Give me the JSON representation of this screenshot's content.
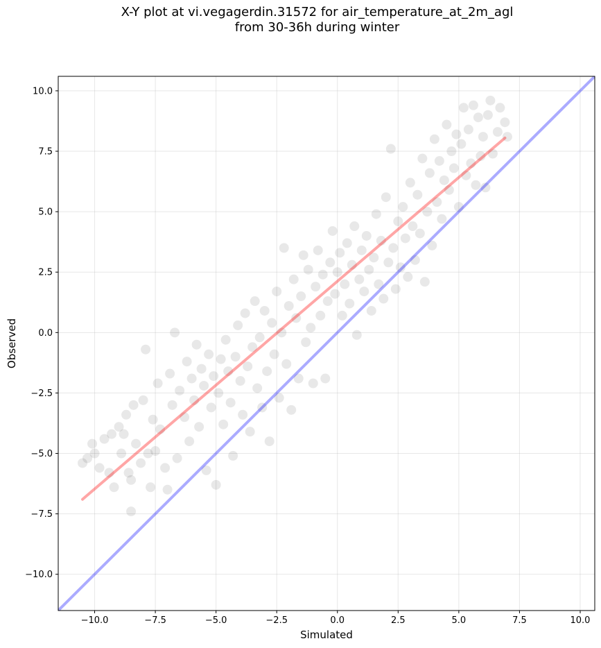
{
  "chart_data": {
    "type": "scatter",
    "title_line1": "X-Y plot at vi.vegagerdin.31572 for air_temperature_at_2m_agl",
    "title_line2": "from 30-36h during winter",
    "xlabel": "Simulated",
    "ylabel": "Observed",
    "xlim": [
      -11.5,
      10.6
    ],
    "ylim": [
      -11.5,
      10.6
    ],
    "x_ticks": [
      -10.0,
      -7.5,
      -5.0,
      -2.5,
      0.0,
      2.5,
      5.0,
      7.5,
      10.0
    ],
    "y_ticks": [
      -10.0,
      -7.5,
      -5.0,
      -2.5,
      0.0,
      2.5,
      5.0,
      7.5,
      10.0
    ],
    "x_tick_labels": [
      "−10.0",
      "−7.5",
      "−5.0",
      "−2.5",
      "0.0",
      "2.5",
      "5.0",
      "7.5",
      "10.0"
    ],
    "y_tick_labels": [
      "−10.0",
      "−7.5",
      "−5.0",
      "−2.5",
      "0.0",
      "2.5",
      "5.0",
      "7.5",
      "10.0"
    ],
    "grid": true,
    "point_color": "#000000",
    "point_opacity": 0.09,
    "series": [
      {
        "type": "scatter",
        "points": [
          [
            -10.5,
            -5.4
          ],
          [
            -10.3,
            -5.2
          ],
          [
            -10.1,
            -4.6
          ],
          [
            -10.0,
            -5.0
          ],
          [
            -9.8,
            -5.6
          ],
          [
            -9.6,
            -4.4
          ],
          [
            -9.4,
            -5.8
          ],
          [
            -9.3,
            -4.2
          ],
          [
            -9.2,
            -6.4
          ],
          [
            -9.0,
            -3.9
          ],
          [
            -8.9,
            -5.0
          ],
          [
            -8.8,
            -4.2
          ],
          [
            -8.7,
            -3.4
          ],
          [
            -8.6,
            -5.8
          ],
          [
            -8.5,
            -7.4
          ],
          [
            -8.5,
            -6.1
          ],
          [
            -8.4,
            -3.0
          ],
          [
            -8.3,
            -4.6
          ],
          [
            -8.1,
            -5.4
          ],
          [
            -8.0,
            -2.8
          ],
          [
            -7.9,
            -0.7
          ],
          [
            -7.8,
            -5.0
          ],
          [
            -7.7,
            -6.4
          ],
          [
            -7.6,
            -3.6
          ],
          [
            -7.5,
            -4.9
          ],
          [
            -7.4,
            -2.1
          ],
          [
            -7.3,
            -4.0
          ],
          [
            -7.1,
            -5.6
          ],
          [
            -7.0,
            -6.5
          ],
          [
            -6.9,
            -1.7
          ],
          [
            -6.8,
            -3.0
          ],
          [
            -6.7,
            0.0
          ],
          [
            -6.6,
            -5.2
          ],
          [
            -6.5,
            -2.4
          ],
          [
            -6.3,
            -3.5
          ],
          [
            -6.2,
            -1.2
          ],
          [
            -6.1,
            -4.5
          ],
          [
            -6.0,
            -1.9
          ],
          [
            -5.9,
            -2.8
          ],
          [
            -5.8,
            -0.5
          ],
          [
            -5.7,
            -3.9
          ],
          [
            -5.6,
            -1.5
          ],
          [
            -5.5,
            -2.2
          ],
          [
            -5.4,
            -5.7
          ],
          [
            -5.3,
            -0.9
          ],
          [
            -5.2,
            -3.1
          ],
          [
            -5.1,
            -1.8
          ],
          [
            -5.0,
            -6.3
          ],
          [
            -4.9,
            -2.5
          ],
          [
            -4.8,
            -1.1
          ],
          [
            -4.7,
            -3.8
          ],
          [
            -4.6,
            -0.3
          ],
          [
            -4.5,
            -1.6
          ],
          [
            -4.4,
            -2.9
          ],
          [
            -4.3,
            -5.1
          ],
          [
            -4.2,
            -1.0
          ],
          [
            -4.1,
            0.3
          ],
          [
            -4.0,
            -2.0
          ],
          [
            -3.9,
            -3.4
          ],
          [
            -3.8,
            0.8
          ],
          [
            -3.7,
            -1.4
          ],
          [
            -3.6,
            -4.1
          ],
          [
            -3.5,
            -0.6
          ],
          [
            -3.4,
            1.3
          ],
          [
            -3.3,
            -2.3
          ],
          [
            -3.2,
            -0.2
          ],
          [
            -3.1,
            -3.1
          ],
          [
            -3.0,
            0.9
          ],
          [
            -2.9,
            -1.6
          ],
          [
            -2.8,
            -4.5
          ],
          [
            -2.7,
            0.4
          ],
          [
            -2.6,
            -0.9
          ],
          [
            -2.5,
            1.7
          ],
          [
            -2.4,
            -2.7
          ],
          [
            -2.3,
            0.0
          ],
          [
            -2.2,
            3.5
          ],
          [
            -2.1,
            -1.3
          ],
          [
            -2.0,
            1.1
          ],
          [
            -1.9,
            -3.2
          ],
          [
            -1.8,
            2.2
          ],
          [
            -1.7,
            0.6
          ],
          [
            -1.6,
            -1.9
          ],
          [
            -1.5,
            1.5
          ],
          [
            -1.4,
            3.2
          ],
          [
            -1.3,
            -0.4
          ],
          [
            -1.2,
            2.6
          ],
          [
            -1.1,
            0.2
          ],
          [
            -1.0,
            -2.1
          ],
          [
            -0.9,
            1.9
          ],
          [
            -0.8,
            3.4
          ],
          [
            -0.7,
            0.7
          ],
          [
            -0.6,
            2.4
          ],
          [
            -0.5,
            -1.9
          ],
          [
            -0.4,
            1.3
          ],
          [
            -0.3,
            2.9
          ],
          [
            -0.2,
            4.2
          ],
          [
            -0.1,
            1.6
          ],
          [
            0.0,
            2.5
          ],
          [
            0.1,
            3.3
          ],
          [
            0.2,
            0.7
          ],
          [
            0.3,
            2.0
          ],
          [
            0.4,
            3.7
          ],
          [
            0.5,
            1.2
          ],
          [
            0.6,
            2.8
          ],
          [
            0.7,
            4.4
          ],
          [
            0.8,
            -0.1
          ],
          [
            0.9,
            2.2
          ],
          [
            1.0,
            3.4
          ],
          [
            1.1,
            1.7
          ],
          [
            1.2,
            4.0
          ],
          [
            1.3,
            2.6
          ],
          [
            1.4,
            0.9
          ],
          [
            1.5,
            3.1
          ],
          [
            1.6,
            4.9
          ],
          [
            1.7,
            2.0
          ],
          [
            1.8,
            3.8
          ],
          [
            1.9,
            1.4
          ],
          [
            2.0,
            5.6
          ],
          [
            2.1,
            2.9
          ],
          [
            2.2,
            7.6
          ],
          [
            2.3,
            3.5
          ],
          [
            2.4,
            1.8
          ],
          [
            2.5,
            4.6
          ],
          [
            2.6,
            2.7
          ],
          [
            2.7,
            5.2
          ],
          [
            2.8,
            3.9
          ],
          [
            2.9,
            2.3
          ],
          [
            3.0,
            6.2
          ],
          [
            3.1,
            4.4
          ],
          [
            3.2,
            3.0
          ],
          [
            3.3,
            5.7
          ],
          [
            3.4,
            4.1
          ],
          [
            3.5,
            7.2
          ],
          [
            3.6,
            2.1
          ],
          [
            3.7,
            5.0
          ],
          [
            3.8,
            6.6
          ],
          [
            3.9,
            3.6
          ],
          [
            4.0,
            8.0
          ],
          [
            4.1,
            5.4
          ],
          [
            4.2,
            7.1
          ],
          [
            4.3,
            4.7
          ],
          [
            4.4,
            6.3
          ],
          [
            4.5,
            8.6
          ],
          [
            4.6,
            5.9
          ],
          [
            4.7,
            7.5
          ],
          [
            4.8,
            6.8
          ],
          [
            4.9,
            8.2
          ],
          [
            5.0,
            5.2
          ],
          [
            5.1,
            7.8
          ],
          [
            5.2,
            9.3
          ],
          [
            5.3,
            6.5
          ],
          [
            5.4,
            8.4
          ],
          [
            5.5,
            7.0
          ],
          [
            5.6,
            9.4
          ],
          [
            5.7,
            6.1
          ],
          [
            5.8,
            8.9
          ],
          [
            5.9,
            7.3
          ],
          [
            6.0,
            8.1
          ],
          [
            6.1,
            6.0
          ],
          [
            6.2,
            9.0
          ],
          [
            6.3,
            9.6
          ],
          [
            6.4,
            7.4
          ],
          [
            6.6,
            8.3
          ],
          [
            6.7,
            9.3
          ],
          [
            6.9,
            8.7
          ],
          [
            7.0,
            8.1
          ]
        ]
      },
      {
        "type": "line",
        "name": "regression",
        "color": "#ff0000",
        "opacity": 0.35,
        "points": [
          [
            -10.5,
            -6.9
          ],
          [
            6.9,
            8.05
          ]
        ]
      },
      {
        "type": "line",
        "name": "1:1",
        "color": "#0000ff",
        "opacity": 0.33,
        "points": [
          [
            -11.5,
            -11.5
          ],
          [
            10.6,
            10.6
          ]
        ]
      }
    ]
  }
}
